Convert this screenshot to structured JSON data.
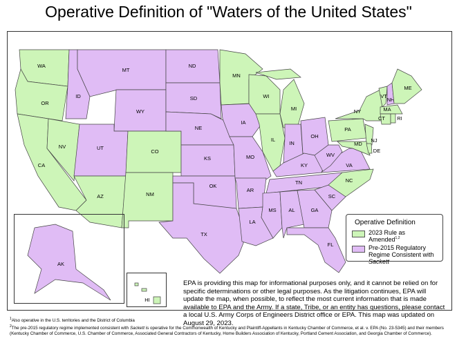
{
  "title": "Operative Definition of \"Waters of the United States\"",
  "colors": {
    "rule_2023": "#cdf5b8",
    "pre_2015": "#e0bcf5",
    "border": "#444444"
  },
  "legend": {
    "title": "Operative Definition",
    "items": [
      {
        "label": "2023 Rule as Amended",
        "sup": "1,2",
        "color": "#cdf5b8"
      },
      {
        "label": "Pre-2015 Regulatory Regime Consistent with",
        "italic": "Sackett",
        "color": "#e0bcf5"
      }
    ]
  },
  "states": {
    "2023 Rule as Amended": [
      "WA",
      "OR",
      "CA",
      "NV",
      "AZ",
      "NM",
      "CO",
      "MN",
      "WI",
      "IL",
      "MI",
      "NY",
      "PA",
      "NJ",
      "NC",
      "VT",
      "ME",
      "MA",
      "CT",
      "RI",
      "MD",
      "DE",
      "HI"
    ],
    "Pre-2015 Regulatory Regime Consistent with Sackett": [
      "MT",
      "ID",
      "WY",
      "UT",
      "ND",
      "SD",
      "NE",
      "KS",
      "OK",
      "TX",
      "IA",
      "MO",
      "AR",
      "LA",
      "MS",
      "AL",
      "GA",
      "SC",
      "FL",
      "TN",
      "KY",
      "IN",
      "OH",
      "WV",
      "VA",
      "NH",
      "AK"
    ]
  },
  "disclaimer": "EPA is providing this map for informational purposes only, and it cannot be relied on for specific determinations or other legal purposes. As the litigation continues, EPA will update the map, when possible, to reflect the most current information that is made available to EPA and the Army. If a state, Tribe, or an entity has questions, please contact a local U.S. Army Corps of Engineers District office or EPA. This map was updated on August 29, 2023.",
  "footnotes": {
    "n1_mark": "1",
    "n1": "Also operative in the U.S. territories and the District of Columbia",
    "n2_mark": "2",
    "n2_pre": "The pre-2015 regulatory regime implemented consistent with ",
    "n2_italic": "Sackett",
    "n2_post": " is operative for the Commonwealth of Kentucky and Plaintiff-Appellants in Kentucky Chamber of Commerce, et al. v. EPA (No. 23-5345) and their members (Kentucky Chamber of Commerce, U.S. Chamber of Commerce, Associated General Contractors of Kentucky, Home Builders Association of Kentucky, Portland Cement Association, and Georgia Chamber of Commerce)."
  }
}
